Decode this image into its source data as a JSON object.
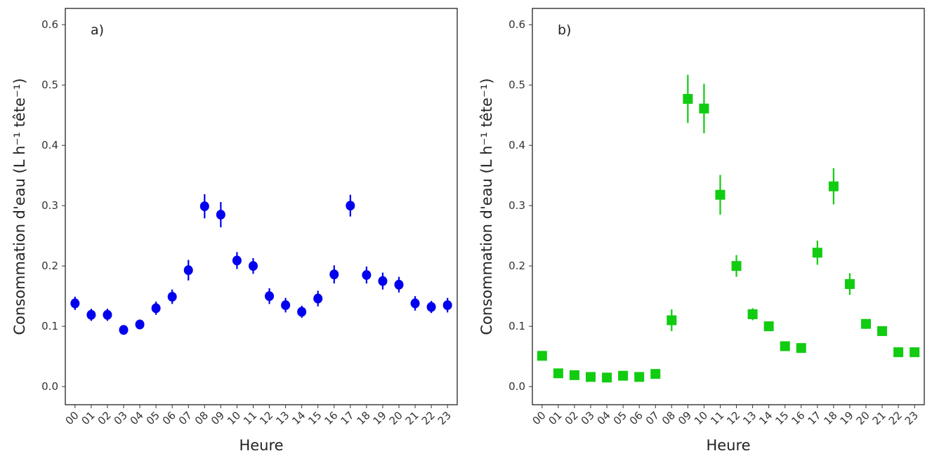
{
  "chart_data": [
    {
      "type": "errorpoint",
      "annotation": "a)",
      "x_label": "Heure",
      "y_label": "Consommation d'eau (L h⁻¹ tête⁻¹)",
      "categories": [
        "00",
        "01",
        "02",
        "03",
        "04",
        "05",
        "06",
        "07",
        "08",
        "09",
        "10",
        "11",
        "12",
        "13",
        "14",
        "15",
        "16",
        "17",
        "18",
        "19",
        "20",
        "21",
        "22",
        "23"
      ],
      "series": [
        {
          "color": "#0000ee",
          "marker": "circle",
          "values": [
            0.138,
            0.119,
            0.119,
            0.094,
            0.103,
            0.13,
            0.149,
            0.193,
            0.299,
            0.285,
            0.209,
            0.2,
            0.15,
            0.135,
            0.124,
            0.146,
            0.186,
            0.3,
            0.185,
            0.175,
            0.169,
            0.138,
            0.132,
            0.135
          ],
          "errors": [
            0.011,
            0.01,
            0.01,
            0.007,
            0.008,
            0.011,
            0.012,
            0.017,
            0.02,
            0.021,
            0.014,
            0.013,
            0.013,
            0.012,
            0.01,
            0.013,
            0.015,
            0.018,
            0.014,
            0.014,
            0.013,
            0.012,
            0.01,
            0.012
          ]
        }
      ],
      "ylim": [
        -0.03,
        0.627
      ],
      "yticks": [
        {
          "value": 0,
          "label": "0.0"
        },
        0.1,
        0.2,
        0.3,
        0.4,
        0.5,
        0.6
      ]
    },
    {
      "type": "errorpoint",
      "annotation": "b)",
      "x_label": "Heure",
      "y_label": "Consommation d'eau (L h⁻¹ tête⁻¹)",
      "categories": [
        "00",
        "01",
        "02",
        "03",
        "04",
        "05",
        "06",
        "07",
        "08",
        "09",
        "10",
        "11",
        "12",
        "13",
        "14",
        "15",
        "16",
        "17",
        "18",
        "19",
        "20",
        "21",
        "22",
        "23"
      ],
      "series": [
        {
          "color": "#11cc11",
          "marker": "square",
          "values": [
            0.051,
            0.022,
            0.019,
            0.016,
            0.015,
            0.018,
            0.016,
            0.021,
            0.11,
            0.477,
            0.461,
            0.318,
            0.2,
            0.12,
            0.1,
            0.067,
            0.064,
            0.222,
            0.332,
            0.17,
            0.104,
            0.092,
            0.057,
            0.057
          ],
          "errors": [
            0.007,
            0.004,
            0.004,
            0.003,
            0.003,
            0.004,
            0.003,
            0.004,
            0.018,
            0.04,
            0.041,
            0.033,
            0.018,
            0.01,
            0.008,
            0.005,
            0.005,
            0.02,
            0.03,
            0.018,
            0.008,
            0.006,
            0.005,
            0.005
          ]
        }
      ],
      "ylim": [
        -0.03,
        0.627
      ],
      "yticks": [
        {
          "value": 0,
          "label": "0.0"
        },
        0.1,
        0.2,
        0.3,
        0.4,
        0.5,
        0.6
      ]
    }
  ]
}
